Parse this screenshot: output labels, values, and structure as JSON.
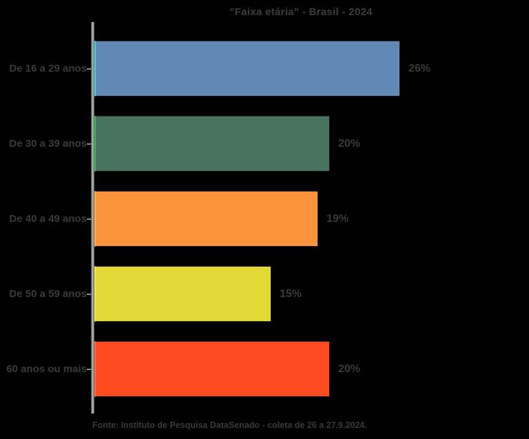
{
  "title": "\"Faixa etária\" - Brasil - 2024",
  "source": "Fonte: Instituto de Pesquisa DataSenado - coleta de 26 a 27.9.2024.",
  "background_color": "#000000",
  "text_color": "#3a3a3a",
  "axis_color": "#c2c2c2",
  "chart_data": {
    "type": "bar",
    "orientation": "horizontal",
    "title": "\"Faixa etária\" - Brasil - 2024",
    "categories": [
      "De 16 a 29 anos",
      "De 30 a 39 anos",
      "De 40 a 49 anos",
      "De 50 a 59 anos",
      "60 anos ou mais"
    ],
    "values": [
      26,
      20,
      19,
      15,
      20
    ],
    "value_labels": [
      "26%",
      "20%",
      "19%",
      "15%",
      "20%"
    ],
    "colors": [
      "#6289b5",
      "#47735f",
      "#f9943d",
      "#e3d936",
      "#fc4a21"
    ],
    "edge_colors": [
      "#3fd8de",
      "#2ec24e",
      "#fcae4a",
      "#f2ea42",
      "#ff6e3a"
    ],
    "xlim": [
      0,
      26
    ],
    "xlabel": "",
    "ylabel": "",
    "grid": false,
    "legend": false,
    "annotation": "Fonte: Instituto de Pesquisa DataSenado - coleta de 26 a 27.9.2024."
  }
}
